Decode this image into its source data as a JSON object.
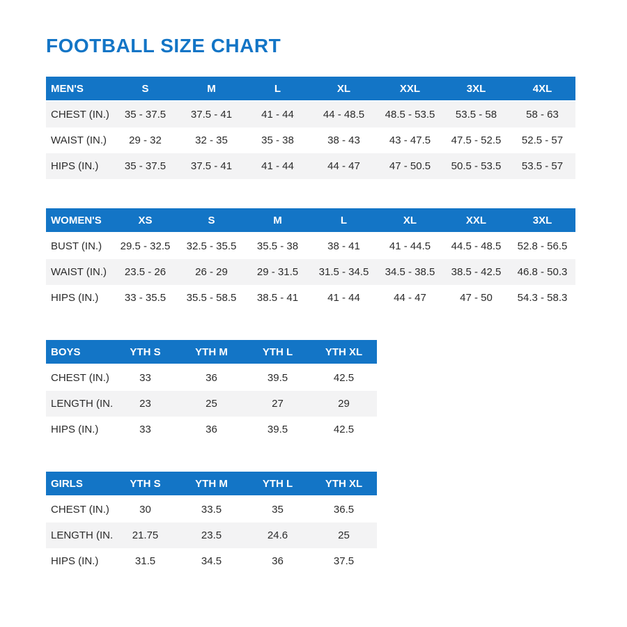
{
  "page": {
    "title": "FOOTBALL SIZE CHART"
  },
  "colors": {
    "brand_blue": "#1375C6",
    "header_text": "#ffffff",
    "body_text": "#2b2b2b",
    "row_alt": "#f3f3f4"
  },
  "tables": [
    {
      "id": "mens",
      "label": "MEN'S",
      "columns": [
        "S",
        "M",
        "L",
        "XL",
        "XXL",
        "3XL",
        "4XL"
      ],
      "shaded_rows": [
        0,
        2
      ],
      "rows": [
        {
          "label": "CHEST (IN.)",
          "values": [
            "35 - 37.5",
            "37.5 - 41",
            "41 - 44",
            "44 - 48.5",
            "48.5 - 53.5",
            "53.5 - 58",
            "58 - 63"
          ]
        },
        {
          "label": "WAIST (IN.)",
          "values": [
            "29 - 32",
            "32 - 35",
            "35 - 38",
            "38 - 43",
            "43 - 47.5",
            "47.5 - 52.5",
            "52.5 - 57"
          ]
        },
        {
          "label": "HIPS (IN.)",
          "values": [
            "35 - 37.5",
            "37.5 - 41",
            "41 - 44",
            "44 - 47",
            "47 - 50.5",
            "50.5 - 53.5",
            "53.5 - 57"
          ]
        }
      ]
    },
    {
      "id": "womens",
      "label": "WOMEN'S",
      "columns": [
        "XS",
        "S",
        "M",
        "L",
        "XL",
        "XXL",
        "3XL"
      ],
      "shaded_rows": [
        1
      ],
      "rows": [
        {
          "label": "BUST (IN.)",
          "values": [
            "29.5 - 32.5",
            "32.5 - 35.5",
            "35.5 - 38",
            "38 - 41",
            "41 - 44.5",
            "44.5 - 48.5",
            "52.8 - 56.5"
          ]
        },
        {
          "label": "WAIST (IN.)",
          "values": [
            "23.5 - 26",
            "26 - 29",
            "29 - 31.5",
            "31.5 - 34.5",
            "34.5 - 38.5",
            "38.5 - 42.5",
            "46.8 - 50.3"
          ]
        },
        {
          "label": "HIPS (IN.)",
          "values": [
            "33 - 35.5",
            "35.5 - 58.5",
            "38.5 - 41",
            "41 - 44",
            "44 - 47",
            "47 - 50",
            "54.3 - 58.3"
          ]
        }
      ]
    },
    {
      "id": "boys",
      "label": "BOYS",
      "columns": [
        "YTH S",
        "YTH M",
        "YTH L",
        "YTH XL"
      ],
      "shaded_rows": [
        1
      ],
      "rows": [
        {
          "label": "CHEST (IN.)",
          "values": [
            "33",
            "36",
            "39.5",
            "42.5"
          ]
        },
        {
          "label": "LENGTH (IN.)",
          "values": [
            "23",
            "25",
            "27",
            "29"
          ]
        },
        {
          "label": "HIPS (IN.)",
          "values": [
            "33",
            "36",
            "39.5",
            "42.5"
          ]
        }
      ]
    },
    {
      "id": "girls",
      "label": "GIRLS",
      "columns": [
        "YTH S",
        "YTH M",
        "YTH L",
        "YTH XL"
      ],
      "shaded_rows": [
        1
      ],
      "rows": [
        {
          "label": "CHEST (IN.)",
          "values": [
            "30",
            "33.5",
            "35",
            "36.5"
          ]
        },
        {
          "label": "LENGTH (IN.)",
          "values": [
            "21.75",
            "23.5",
            "24.6",
            "25"
          ]
        },
        {
          "label": "HIPS (IN.)",
          "values": [
            "31.5",
            "34.5",
            "36",
            "37.5"
          ]
        }
      ]
    }
  ]
}
